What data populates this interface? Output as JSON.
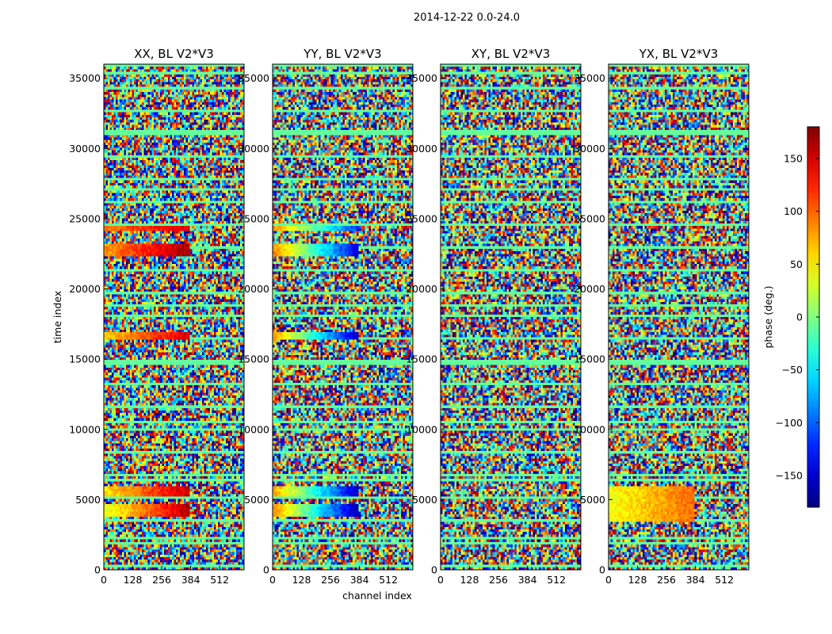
{
  "chart_data": [
    {
      "type": "heatmap",
      "title": "XX, BL V2*V3",
      "xlabel": "",
      "ylabel": "time index",
      "xlim": [
        0,
        620
      ],
      "ylim": [
        0,
        36000
      ],
      "xticks": [
        0,
        128,
        256,
        384,
        512
      ],
      "yticks": [
        0,
        5000,
        10000,
        15000,
        20000,
        25000,
        30000,
        35000
      ],
      "coherent_features": [
        {
          "t": [
            3700,
            4700
          ],
          "ch": [
            0,
            384
          ],
          "phase_start": 30,
          "phase_end": 165
        },
        {
          "t": [
            5200,
            6000
          ],
          "ch": [
            0,
            384
          ],
          "phase_start": 50,
          "phase_end": 160
        },
        {
          "t": [
            16300,
            16900
          ],
          "ch": [
            0,
            384
          ],
          "phase_start": 60,
          "phase_end": 150
        },
        {
          "t": [
            22300,
            23200
          ],
          "ch": [
            0,
            384
          ],
          "phase_start": 80,
          "phase_end": 170
        },
        {
          "t": [
            24100,
            24400
          ],
          "ch": [
            0,
            384
          ],
          "phase_start": 90,
          "phase_end": 150
        }
      ]
    },
    {
      "type": "heatmap",
      "title": "YY, BL V2*V3",
      "xlabel": "channel index",
      "ylabel": "",
      "xlim": [
        0,
        620
      ],
      "ylim": [
        0,
        36000
      ],
      "xticks": [
        0,
        128,
        256,
        384,
        512
      ],
      "yticks": [
        0,
        5000,
        10000,
        15000,
        20000,
        25000,
        30000,
        35000
      ],
      "coherent_features": [
        {
          "t": [
            3700,
            4700
          ],
          "ch": [
            0,
            384
          ],
          "phase_start": 90,
          "phase_end": -170
        },
        {
          "t": [
            5200,
            6000
          ],
          "ch": [
            0,
            384
          ],
          "phase_start": 80,
          "phase_end": -160
        },
        {
          "t": [
            16300,
            16900
          ],
          "ch": [
            0,
            384
          ],
          "phase_start": 80,
          "phase_end": -160
        },
        {
          "t": [
            22300,
            23200
          ],
          "ch": [
            0,
            384
          ],
          "phase_start": 90,
          "phase_end": -150
        },
        {
          "t": [
            24100,
            24400
          ],
          "ch": [
            0,
            384
          ],
          "phase_start": 90,
          "phase_end": -120
        }
      ]
    },
    {
      "type": "heatmap",
      "title": "XY, BL V2*V3",
      "xlabel": "",
      "ylabel": "",
      "xlim": [
        0,
        620
      ],
      "ylim": [
        0,
        36000
      ],
      "xticks": [
        0,
        128,
        256,
        384,
        512
      ],
      "yticks": [
        0,
        5000,
        10000,
        15000,
        20000,
        25000,
        30000,
        35000
      ],
      "coherent_features": []
    },
    {
      "type": "heatmap",
      "title": "YX, BL V2*V3",
      "xlabel": "",
      "ylabel": "",
      "xlim": [
        0,
        620
      ],
      "ylim": [
        0,
        36000
      ],
      "xticks": [
        0,
        128,
        256,
        384,
        512
      ],
      "yticks": [
        0,
        5000,
        10000,
        15000,
        20000,
        25000,
        30000,
        35000
      ],
      "coherent_features": [
        {
          "t": [
            3500,
            6000
          ],
          "ch": [
            0,
            384
          ],
          "phase_start": 40,
          "phase_end": 100
        }
      ]
    }
  ],
  "figure": {
    "suptitle": "2014-12-22 0.0-24.0",
    "ylabel": "time index",
    "xlabel": "channel index"
  },
  "colorbar": {
    "label": "phase (deg.)",
    "colormap": "jet",
    "range": [
      -180,
      180
    ],
    "ticks": [
      -150,
      -100,
      -50,
      0,
      50,
      100,
      150
    ],
    "tick_labels": [
      "−150",
      "−100",
      "−50",
      "0",
      "50",
      "100",
      "150"
    ]
  }
}
